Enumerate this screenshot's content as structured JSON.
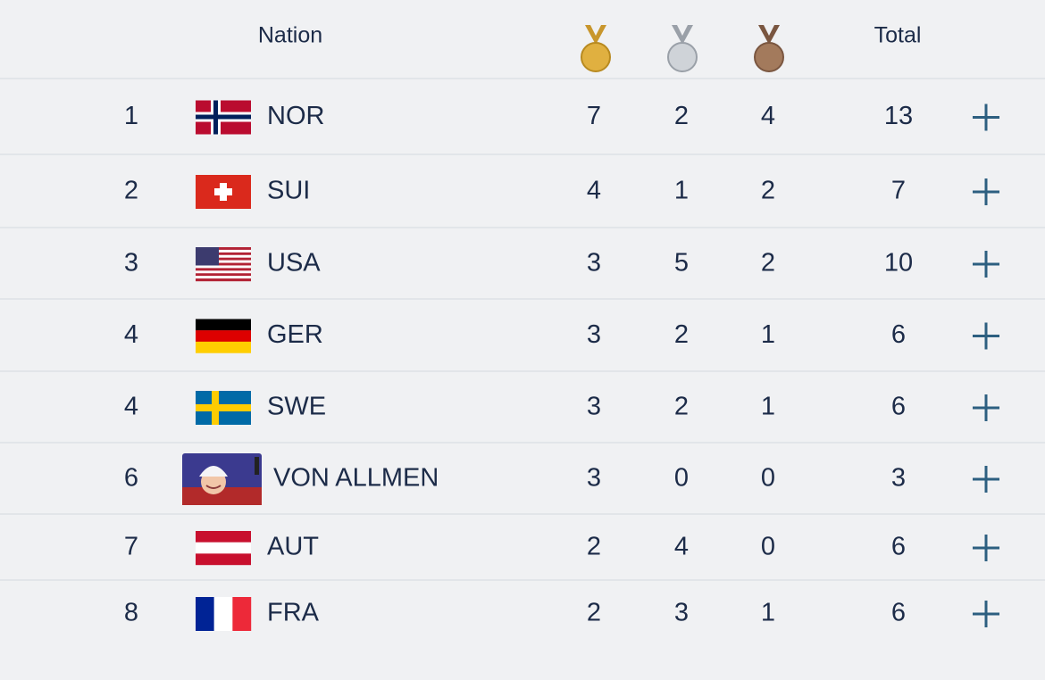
{
  "header": {
    "nation": "Nation",
    "total": "Total"
  },
  "table": {
    "rows": [
      {
        "rank": 1,
        "nation": "NOR",
        "gold": 7,
        "silver": 2,
        "bronze": 4,
        "total": 13
      },
      {
        "rank": 2,
        "nation": "SUI",
        "gold": 4,
        "silver": 1,
        "bronze": 2,
        "total": 7
      },
      {
        "rank": 3,
        "nation": "USA",
        "gold": 3,
        "silver": 5,
        "bronze": 2,
        "total": 10
      },
      {
        "rank": 4,
        "nation": "GER",
        "gold": 3,
        "silver": 2,
        "bronze": 1,
        "total": 6
      },
      {
        "rank": 4,
        "nation": "SWE",
        "gold": 3,
        "silver": 2,
        "bronze": 1,
        "total": 6
      },
      {
        "rank": 6,
        "nation": "VON ALLMEN",
        "gold": 3,
        "silver": 0,
        "bronze": 0,
        "total": 3
      },
      {
        "rank": 7,
        "nation": "AUT",
        "gold": 2,
        "silver": 4,
        "bronze": 0,
        "total": 6
      },
      {
        "rank": 8,
        "nation": "FRA",
        "gold": 2,
        "silver": 3,
        "bronze": 1,
        "total": 6
      }
    ]
  }
}
